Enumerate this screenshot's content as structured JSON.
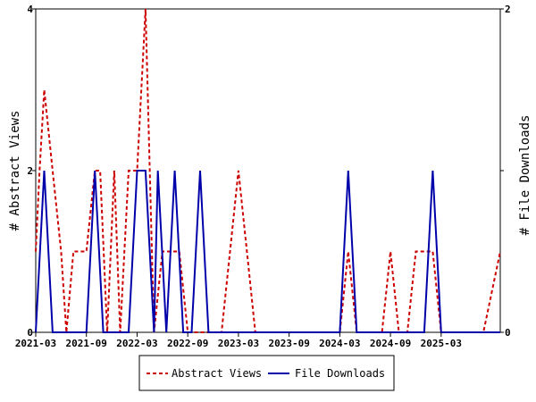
{
  "chart_data": {
    "type": "line",
    "title": "",
    "x_ticks": [
      "2021-03",
      "2021-09",
      "2022-03",
      "2022-09",
      "2023-03",
      "2023-09",
      "2024-03",
      "2024-09",
      "2025-03"
    ],
    "x_range": [
      "2021-03",
      "2025-10"
    ],
    "y_left": {
      "label": "# Abstract Views",
      "range": [
        0,
        4
      ],
      "ticks": [
        "0",
        "2",
        "4"
      ]
    },
    "y_right": {
      "label": "# File Downloads",
      "range": [
        0,
        2
      ],
      "ticks": [
        "0",
        "1",
        "2"
      ]
    },
    "legend": {
      "position": "bottom-center"
    },
    "grid": false,
    "series": [
      {
        "name": "Abstract Views",
        "axis": "left",
        "color": "#cc0000",
        "style": "dashed",
        "points": [
          [
            "2021-03-01",
            1
          ],
          [
            "2021-03-15",
            2
          ],
          [
            "2021-04-01",
            3
          ],
          [
            "2021-05-01",
            2
          ],
          [
            "2021-06-01",
            1
          ],
          [
            "2021-06-20",
            0
          ],
          [
            "2021-07-15",
            1
          ],
          [
            "2021-09-01",
            1
          ],
          [
            "2021-10-01",
            2
          ],
          [
            "2021-10-20",
            2
          ],
          [
            "2021-11-15",
            0
          ],
          [
            "2021-12-10",
            2
          ],
          [
            "2022-01-01",
            0
          ],
          [
            "2022-02-01",
            2
          ],
          [
            "2022-03-01",
            2
          ],
          [
            "2022-04-01",
            4
          ],
          [
            "2022-05-01",
            0
          ],
          [
            "2022-06-01",
            1
          ],
          [
            "2022-07-01",
            1
          ],
          [
            "2022-08-01",
            1
          ],
          [
            "2022-09-01",
            0
          ],
          [
            "2022-10-01",
            0
          ],
          [
            "2022-11-01",
            0
          ],
          [
            "2022-12-01",
            0
          ],
          [
            "2023-01-01",
            0
          ],
          [
            "2023-02-01",
            1
          ],
          [
            "2023-03-01",
            2
          ],
          [
            "2023-04-01",
            1
          ],
          [
            "2023-05-01",
            0
          ],
          [
            "2023-06-01",
            0
          ],
          [
            "2023-09-01",
            0
          ],
          [
            "2024-01-01",
            0
          ],
          [
            "2024-03-01",
            0
          ],
          [
            "2024-04-01",
            1
          ],
          [
            "2024-05-01",
            0
          ],
          [
            "2024-08-01",
            0
          ],
          [
            "2024-09-01",
            1
          ],
          [
            "2024-10-01",
            0
          ],
          [
            "2024-11-01",
            0
          ],
          [
            "2024-12-01",
            1
          ],
          [
            "2025-02-01",
            1
          ],
          [
            "2025-03-01",
            0
          ],
          [
            "2025-08-01",
            0
          ],
          [
            "2025-10-01",
            1
          ]
        ]
      },
      {
        "name": "File Downloads",
        "axis": "right",
        "color": "#0000aa",
        "style": "solid",
        "points": [
          [
            "2021-03-01",
            0
          ],
          [
            "2021-04-01",
            1
          ],
          [
            "2021-05-01",
            0
          ],
          [
            "2021-09-01",
            0
          ],
          [
            "2021-10-01",
            1
          ],
          [
            "2021-11-01",
            0
          ],
          [
            "2022-01-01",
            0
          ],
          [
            "2022-02-01",
            0
          ],
          [
            "2022-03-01",
            1
          ],
          [
            "2022-04-01",
            1
          ],
          [
            "2022-05-01",
            0
          ],
          [
            "2022-05-15",
            1
          ],
          [
            "2022-06-15",
            0
          ],
          [
            "2022-07-15",
            1
          ],
          [
            "2022-08-15",
            0
          ],
          [
            "2022-09-15",
            0
          ],
          [
            "2022-10-15",
            1
          ],
          [
            "2022-11-15",
            0
          ],
          [
            "2024-03-01",
            0
          ],
          [
            "2024-04-01",
            1
          ],
          [
            "2024-05-01",
            0
          ],
          [
            "2025-01-01",
            0
          ],
          [
            "2025-02-01",
            1
          ],
          [
            "2025-03-01",
            0
          ],
          [
            "2025-10-01",
            0
          ]
        ]
      }
    ]
  }
}
